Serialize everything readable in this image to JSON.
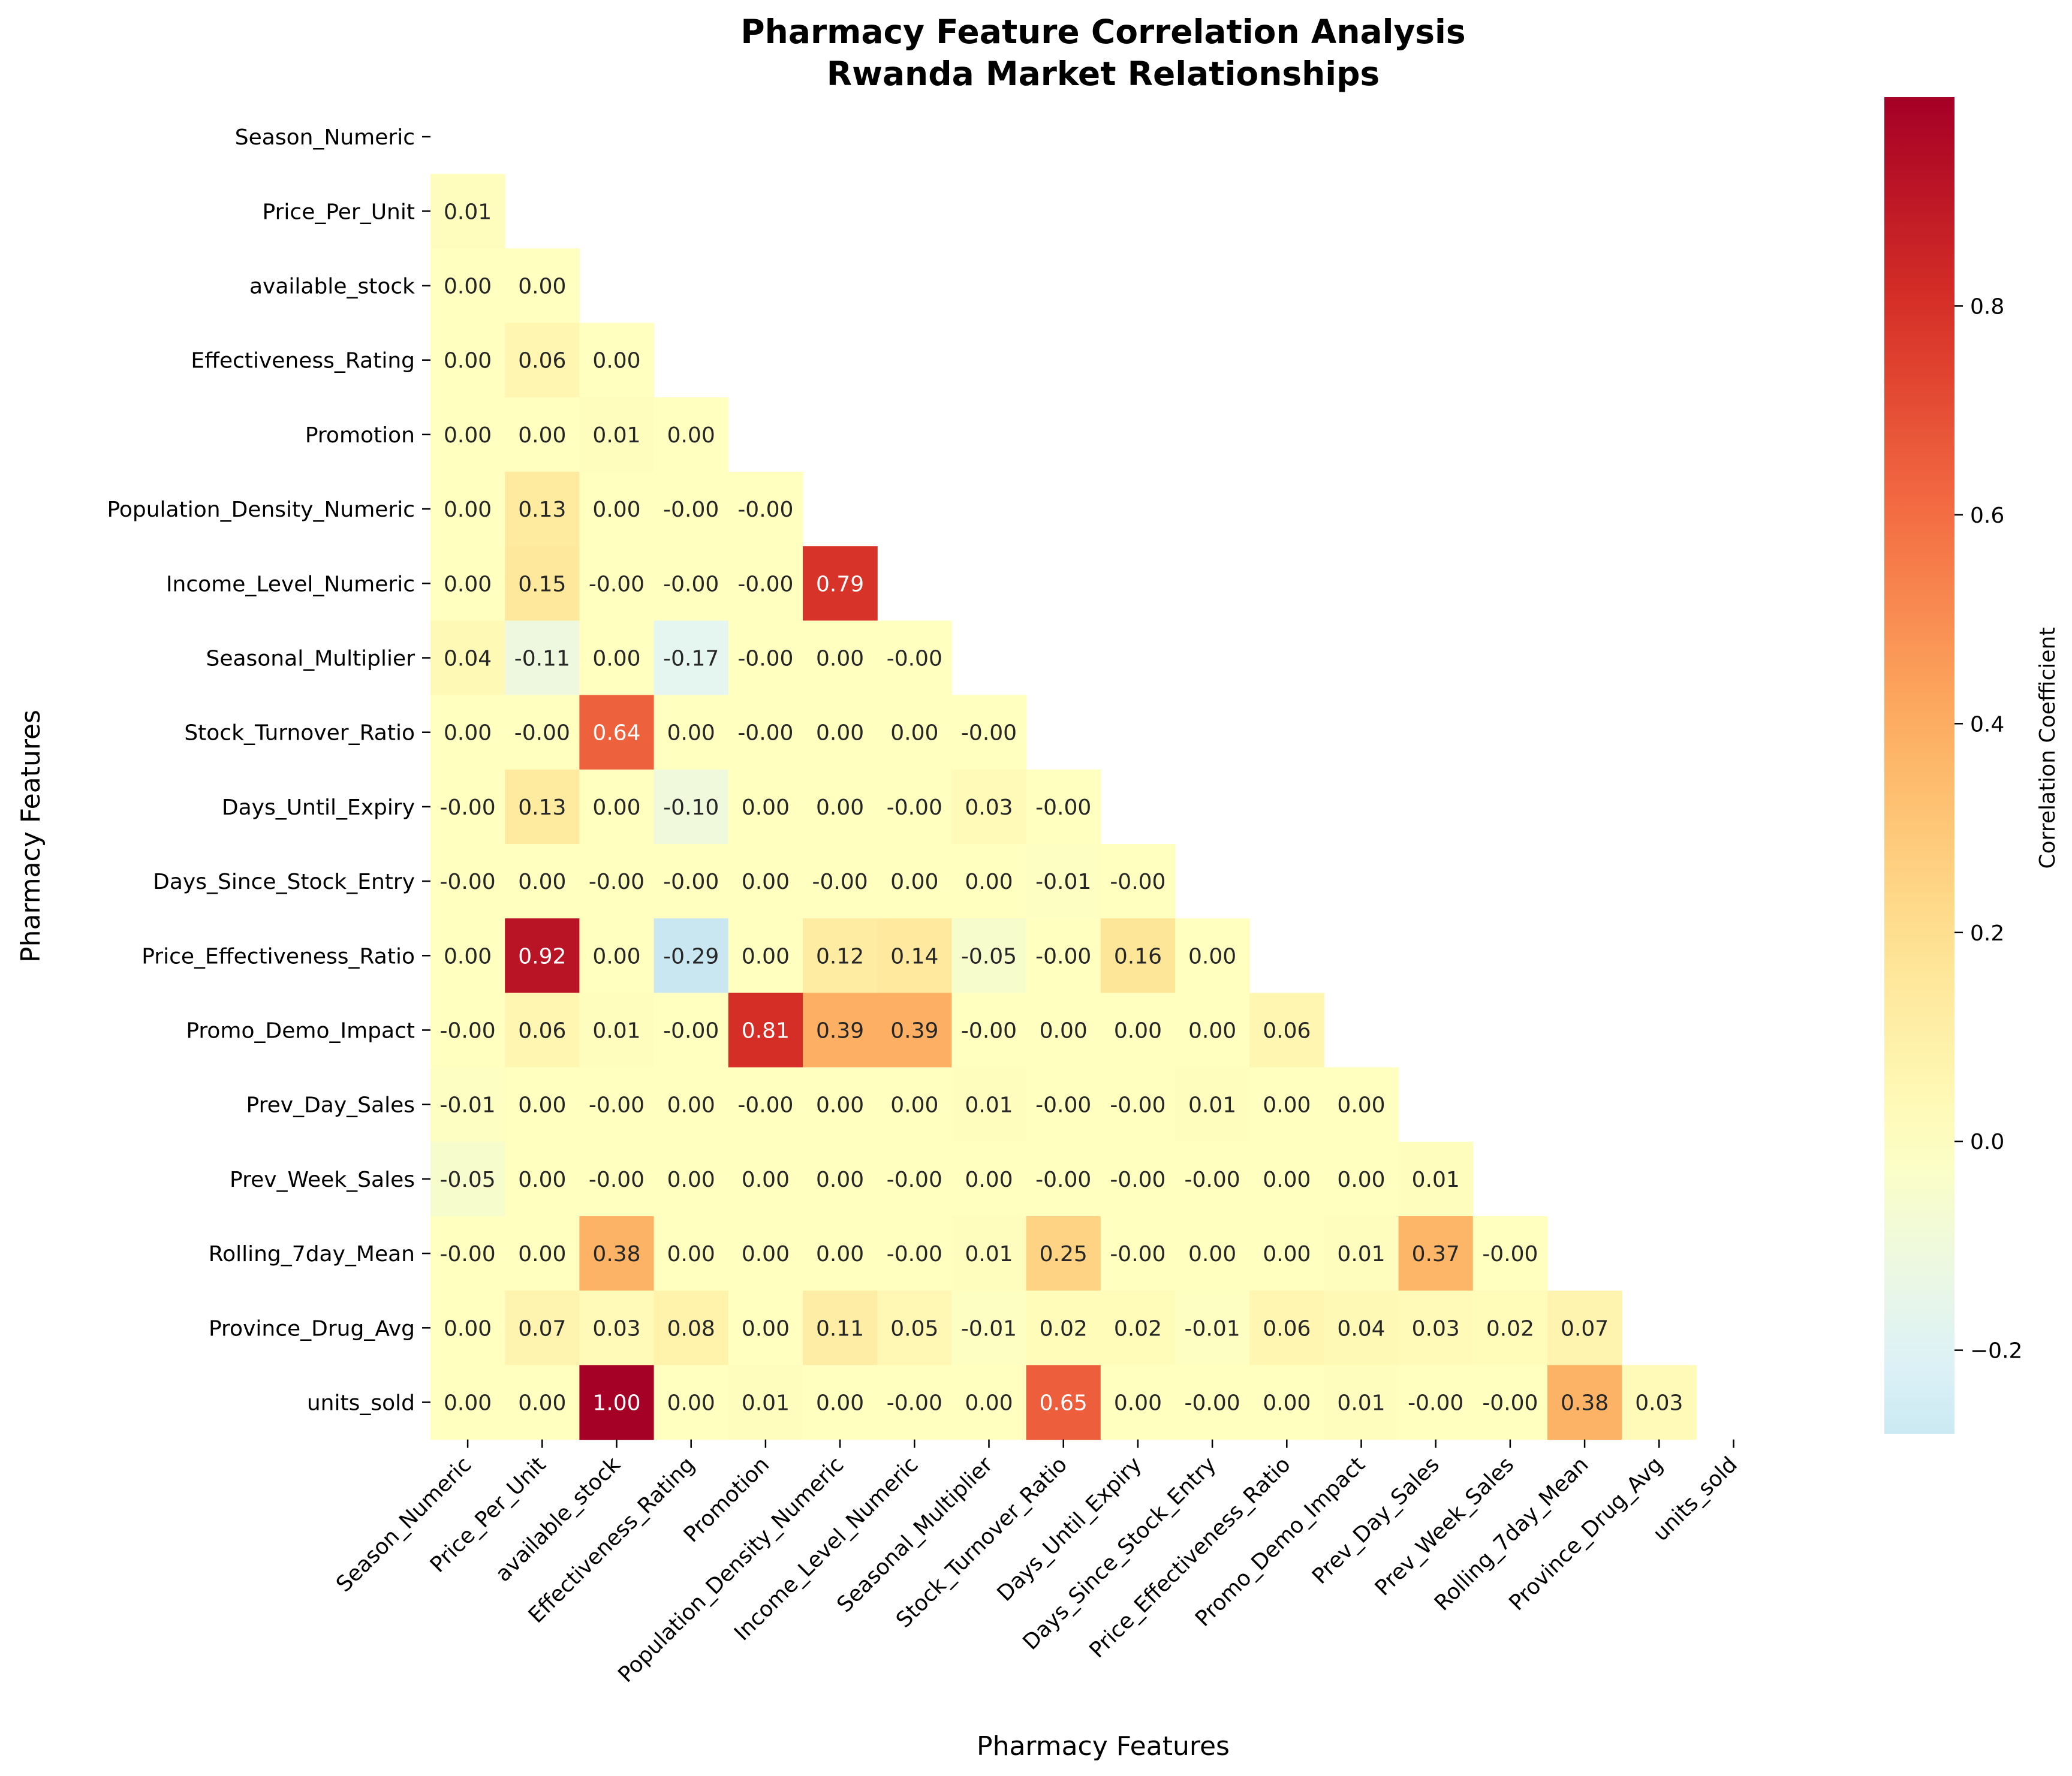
{
  "chart_data": {
    "type": "heatmap",
    "title": "Pharmacy Feature Correlation Analysis",
    "subtitle": "Rwanda Market Relationships",
    "xlabel": "Pharmacy Features",
    "ylabel": "Pharmacy Features",
    "colorbar_label": "Correlation Coefficient",
    "colormap": "RdYlBu_r",
    "color_range": [
      -0.28,
      1.0
    ],
    "colorbar_ticks": [
      "0.8",
      "0.6",
      "0.4",
      "0.2",
      "0.0",
      "−0.2"
    ],
    "colorbar_tick_values": [
      0.8,
      0.6,
      0.4,
      0.2,
      0.0,
      -0.2
    ],
    "mask": "upper-triangle-including-diagonal",
    "features": [
      "Season_Numeric",
      "Price_Per_Unit",
      "available_stock",
      "Effectiveness_Rating",
      "Promotion",
      "Population_Density_Numeric",
      "Income_Level_Numeric",
      "Seasonal_Multiplier",
      "Stock_Turnover_Ratio",
      "Days_Until_Expiry",
      "Days_Since_Stock_Entry",
      "Price_Effectiveness_Ratio",
      "Promo_Demo_Impact",
      "Prev_Day_Sales",
      "Prev_Week_Sales",
      "Rolling_7day_Mean",
      "Province_Drug_Avg",
      "units_sold"
    ],
    "cells": [
      [],
      [
        "0.01"
      ],
      [
        "0.00",
        "0.00"
      ],
      [
        "0.00",
        "0.06",
        "0.00"
      ],
      [
        "0.00",
        "0.00",
        "0.01",
        "0.00"
      ],
      [
        "0.00",
        "0.13",
        "0.00",
        "-0.00",
        "-0.00"
      ],
      [
        "0.00",
        "0.15",
        "-0.00",
        "-0.00",
        "-0.00",
        "0.79"
      ],
      [
        "0.04",
        "-0.11",
        "0.00",
        "-0.17",
        "-0.00",
        "0.00",
        "-0.00"
      ],
      [
        "0.00",
        "-0.00",
        "0.64",
        "0.00",
        "-0.00",
        "0.00",
        "0.00",
        "-0.00"
      ],
      [
        "-0.00",
        "0.13",
        "0.00",
        "-0.10",
        "0.00",
        "0.00",
        "-0.00",
        "0.03",
        "-0.00"
      ],
      [
        "-0.00",
        "0.00",
        "-0.00",
        "-0.00",
        "0.00",
        "-0.00",
        "0.00",
        "0.00",
        "-0.01",
        "-0.00"
      ],
      [
        "0.00",
        "0.92",
        "0.00",
        "-0.29",
        "0.00",
        "0.12",
        "0.14",
        "-0.05",
        "-0.00",
        "0.16",
        "0.00"
      ],
      [
        "-0.00",
        "0.06",
        "0.01",
        "-0.00",
        "0.81",
        "0.39",
        "0.39",
        "-0.00",
        "0.00",
        "0.00",
        "0.00",
        "0.06"
      ],
      [
        "-0.01",
        "0.00",
        "-0.00",
        "0.00",
        "-0.00",
        "0.00",
        "0.00",
        "0.01",
        "-0.00",
        "-0.00",
        "0.01",
        "0.00",
        "0.00"
      ],
      [
        "-0.05",
        "0.00",
        "-0.00",
        "0.00",
        "0.00",
        "0.00",
        "-0.00",
        "0.00",
        "-0.00",
        "-0.00",
        "-0.00",
        "0.00",
        "0.00",
        "0.01"
      ],
      [
        "-0.00",
        "0.00",
        "0.38",
        "0.00",
        "0.00",
        "0.00",
        "-0.00",
        "0.01",
        "0.25",
        "-0.00",
        "0.00",
        "0.00",
        "0.01",
        "0.37",
        "-0.00"
      ],
      [
        "0.00",
        "0.07",
        "0.03",
        "0.08",
        "0.00",
        "0.11",
        "0.05",
        "-0.01",
        "0.02",
        "0.02",
        "-0.01",
        "0.06",
        "0.04",
        "0.03",
        "0.02",
        "0.07"
      ],
      [
        "0.00",
        "0.00",
        "1.00",
        "0.00",
        "0.01",
        "0.00",
        "-0.00",
        "0.00",
        "0.65",
        "0.00",
        "-0.00",
        "0.00",
        "0.01",
        "-0.00",
        "-0.00",
        "0.38",
        "0.03"
      ]
    ]
  }
}
